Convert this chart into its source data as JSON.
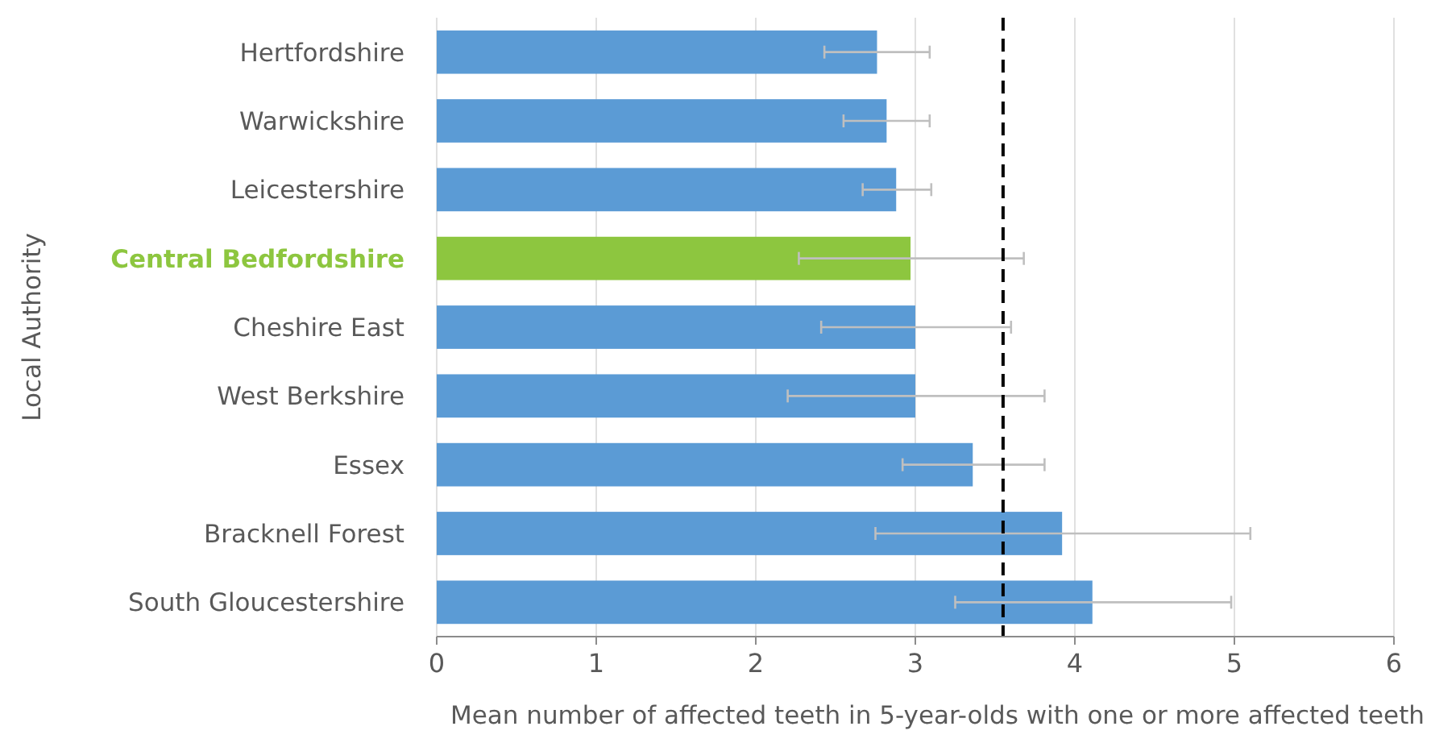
{
  "chart_data": {
    "type": "bar",
    "orientation": "horizontal",
    "xlabel": "Mean number of affected teeth in 5-year-olds with one or more affected teeth",
    "ylabel": "Local Authority",
    "categories": [
      "Hertfordshire",
      "Warwickshire",
      "Leicestershire",
      "Central Bedfordshire",
      "Cheshire East",
      "West Berkshire",
      "Essex",
      "Bracknell Forest",
      "South Gloucestershire"
    ],
    "values": [
      2.76,
      2.82,
      2.88,
      2.97,
      3.0,
      3.0,
      3.36,
      3.92,
      4.11
    ],
    "color": "#5b9bd5",
    "colors": [
      "#5b9bd5",
      "#5b9bd5",
      "#5b9bd5",
      "#8dc63f",
      "#5b9bd5",
      "#5b9bd5",
      "#5b9bd5",
      "#5b9bd5",
      "#5b9bd5"
    ],
    "errors": [
      [
        2.43,
        3.09
      ],
      [
        2.55,
        3.09
      ],
      [
        2.67,
        3.1
      ],
      [
        2.27,
        3.68
      ],
      [
        2.41,
        3.6
      ],
      [
        2.2,
        3.81
      ],
      [
        2.92,
        3.81
      ],
      [
        2.75,
        5.1
      ],
      [
        3.25,
        4.98
      ]
    ],
    "xlim": [
      0,
      6
    ],
    "xticks": [
      0,
      1,
      2,
      3,
      4,
      5,
      6
    ],
    "grid": "x",
    "ref_lines": [
      {
        "axis": "x",
        "value": 3.55,
        "color": "#000000",
        "line_style": "dashed"
      }
    ]
  }
}
